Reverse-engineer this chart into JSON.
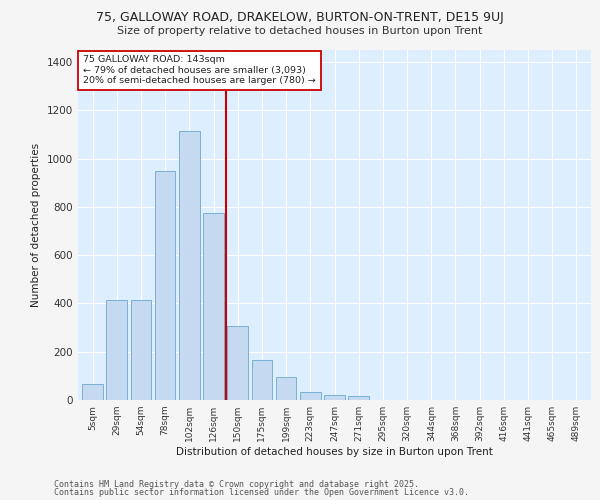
{
  "title1": "75, GALLOWAY ROAD, DRAKELOW, BURTON-ON-TRENT, DE15 9UJ",
  "title2": "Size of property relative to detached houses in Burton upon Trent",
  "xlabel": "Distribution of detached houses by size in Burton upon Trent",
  "ylabel": "Number of detached properties",
  "categories": [
    "5sqm",
    "29sqm",
    "54sqm",
    "78sqm",
    "102sqm",
    "126sqm",
    "150sqm",
    "175sqm",
    "199sqm",
    "223sqm",
    "247sqm",
    "271sqm",
    "295sqm",
    "320sqm",
    "344sqm",
    "368sqm",
    "392sqm",
    "416sqm",
    "441sqm",
    "465sqm",
    "489sqm"
  ],
  "values": [
    68,
    415,
    415,
    950,
    1115,
    775,
    305,
    165,
    97,
    35,
    20,
    15,
    0,
    0,
    0,
    0,
    0,
    0,
    0,
    0,
    0
  ],
  "bar_color": "#c5d9f1",
  "bar_edge_color": "#7bafd4",
  "vline_color": "#cc0000",
  "vline_pos": 5.5,
  "annotation_text": "75 GALLOWAY ROAD: 143sqm\n← 79% of detached houses are smaller (3,093)\n20% of semi-detached houses are larger (780) →",
  "annotation_box_color": "#ffffff",
  "annotation_box_edge": "#cc0000",
  "plot_bg_color": "#ddeeff",
  "grid_color": "#ffffff",
  "fig_bg_color": "#f5f5f5",
  "footer1": "Contains HM Land Registry data © Crown copyright and database right 2025.",
  "footer2": "Contains public sector information licensed under the Open Government Licence v3.0.",
  "ylim": [
    0,
    1450
  ],
  "yticks": [
    0,
    200,
    400,
    600,
    800,
    1000,
    1200,
    1400
  ]
}
